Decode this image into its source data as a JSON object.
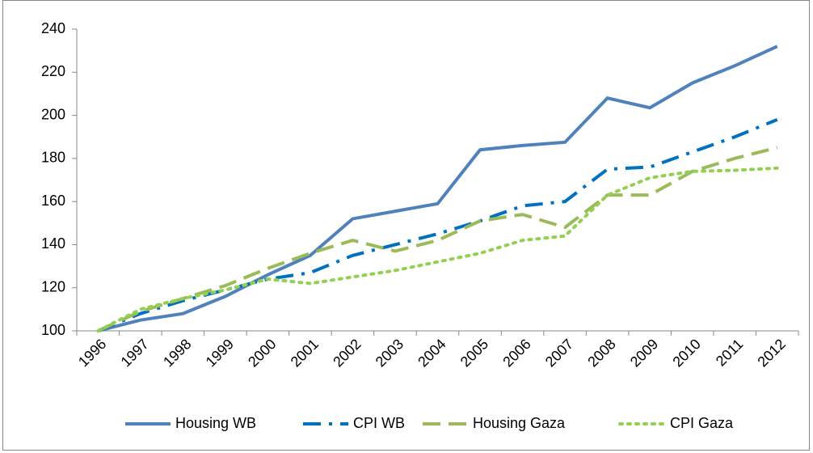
{
  "chart_data": {
    "type": "line",
    "categories": [
      "1996",
      "1997",
      "1998",
      "1999",
      "2000",
      "2001",
      "2002",
      "2003",
      "2004",
      "2005",
      "2006",
      "2007",
      "2008",
      "2009",
      "2010",
      "2011",
      "2012"
    ],
    "series": [
      {
        "name": "Housing WB",
        "color": "#4f81bd",
        "dash": "solid",
        "values": [
          100,
          105,
          108,
          116,
          126,
          135,
          152,
          155.5,
          159,
          184,
          186,
          187.5,
          208,
          203.5,
          215,
          223,
          232
        ]
      },
      {
        "name": "CPI WB",
        "color": "#0070c0",
        "dash": "dashdot",
        "values": [
          100,
          108,
          114,
          119,
          124,
          127,
          135,
          140,
          145,
          151,
          158,
          160,
          175,
          176,
          183,
          190,
          198
        ]
      },
      {
        "name": "Housing Gaza",
        "color": "#9bbb59",
        "dash": "dash",
        "values": [
          100,
          109,
          115,
          121,
          129,
          136,
          142,
          137,
          142,
          151,
          154,
          148,
          163,
          163,
          174,
          180,
          185
        ]
      },
      {
        "name": "CPI Gaza",
        "color": "#92d050",
        "dash": "dot",
        "values": [
          100,
          110,
          115,
          119,
          124,
          122,
          125,
          128,
          132,
          136,
          142,
          144,
          163,
          171,
          174,
          174.5,
          175.5
        ]
      }
    ],
    "ylim": [
      100,
      240
    ],
    "yticks": [
      100,
      120,
      140,
      160,
      180,
      200,
      220,
      240
    ],
    "legend": "bottom"
  }
}
